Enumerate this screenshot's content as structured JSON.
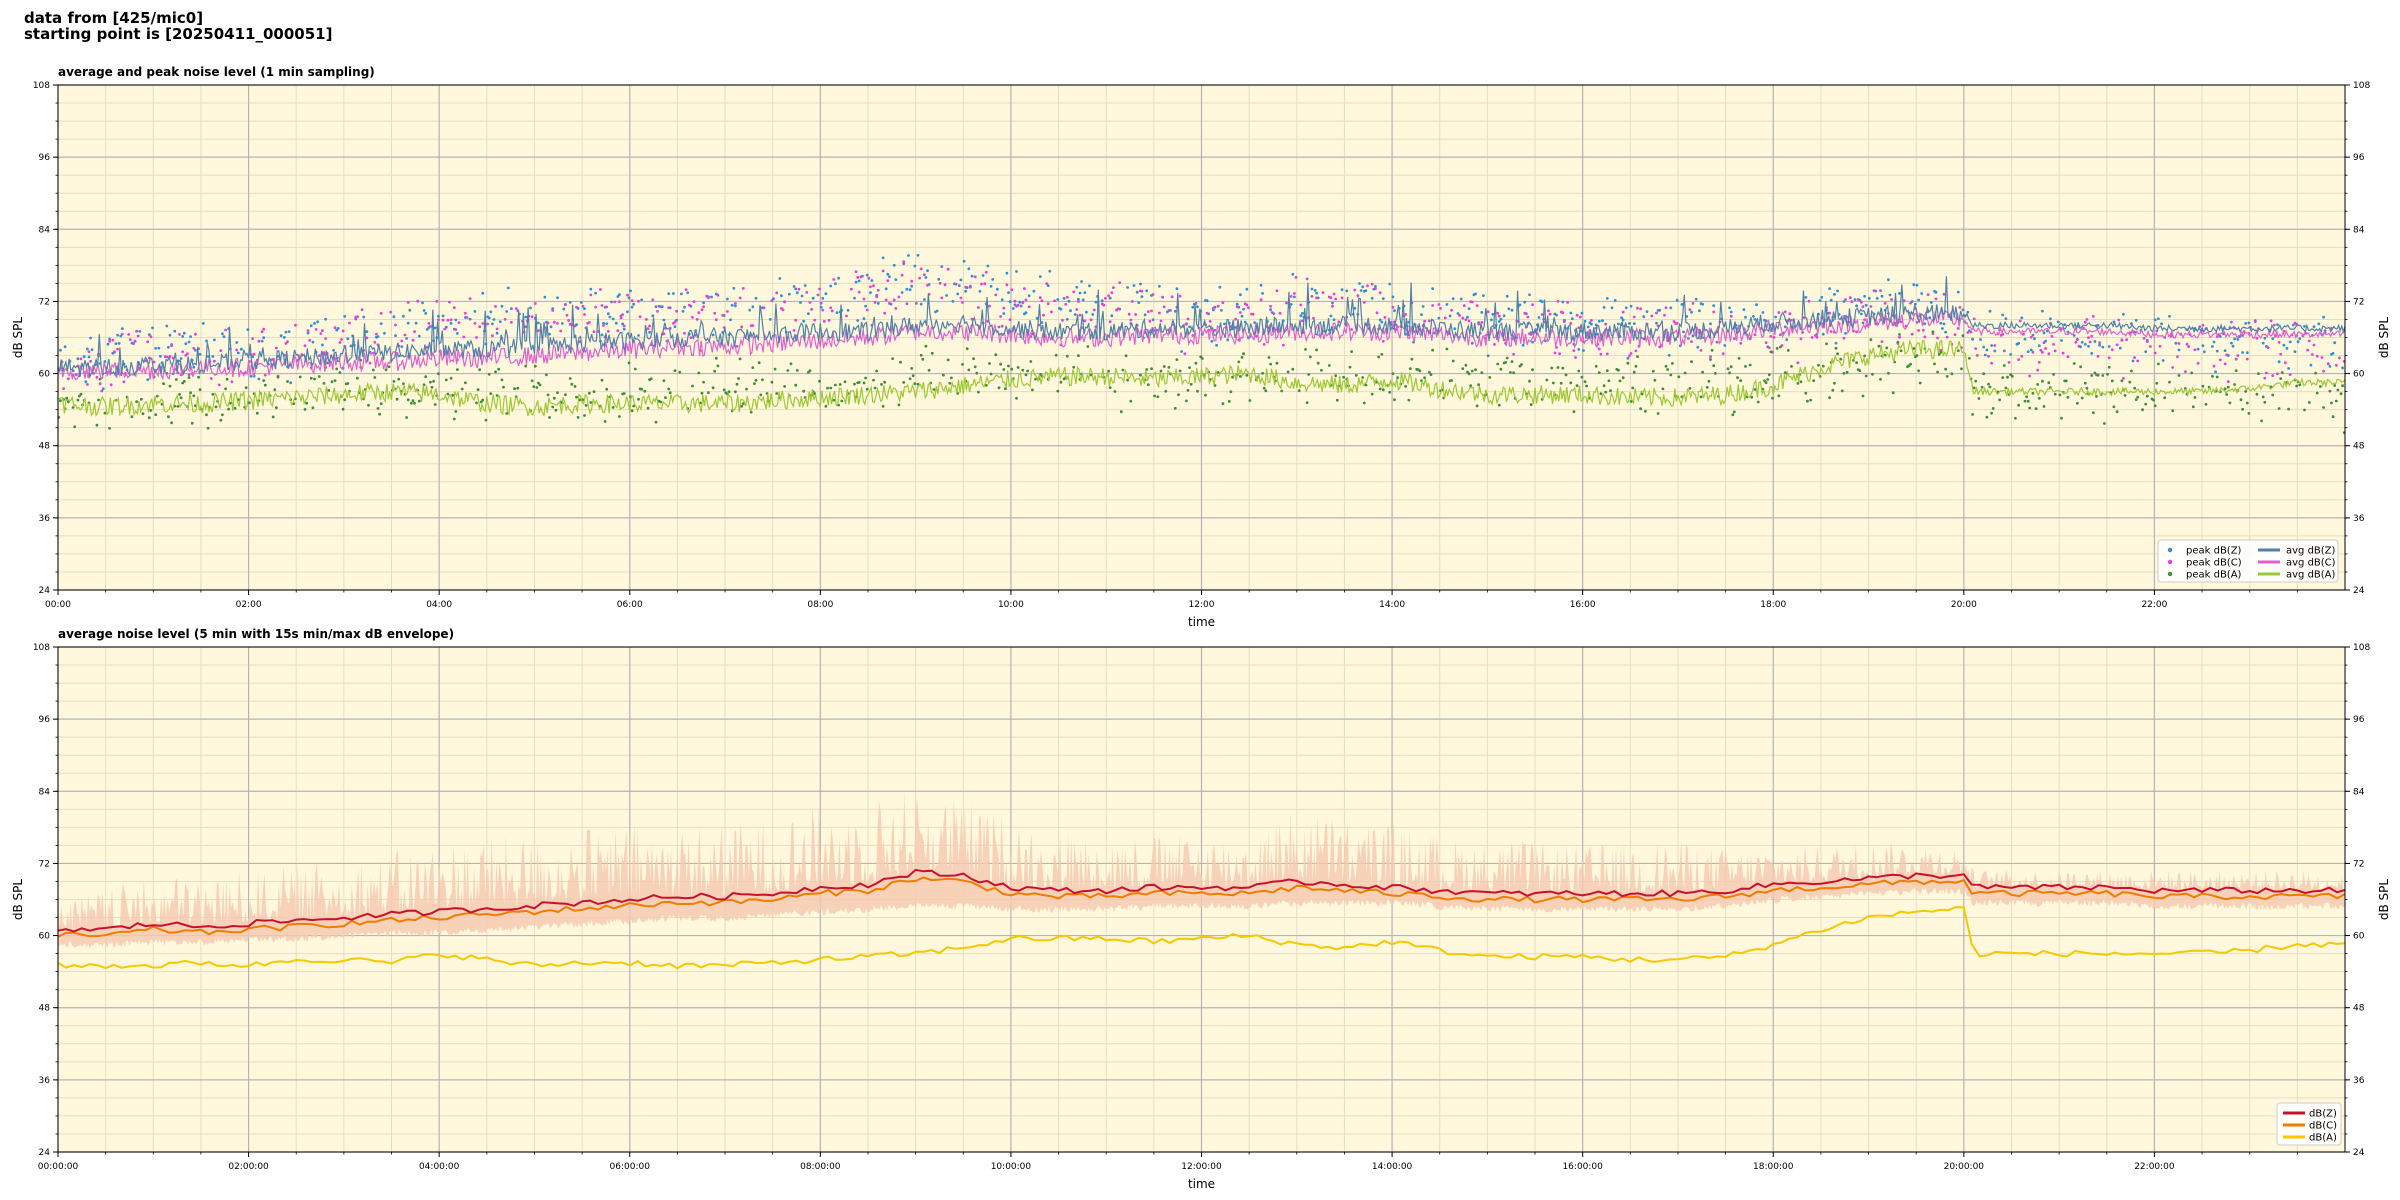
{
  "header": {
    "line1": "data from [425/mic0]",
    "line2": "starting point is [20250411_000051]"
  },
  "chart_data": [
    {
      "type": "line",
      "title": "average and peak noise level (1 min sampling)",
      "xlabel": "time",
      "ylabel": "dB SPL",
      "xlim_hours": [
        0,
        24
      ],
      "ylim": [
        24,
        108
      ],
      "yticks": [
        24,
        36,
        48,
        60,
        72,
        84,
        96,
        108
      ],
      "xtick_labels": [
        "00:00",
        "02:00",
        "04:00",
        "06:00",
        "08:00",
        "10:00",
        "12:00",
        "14:00",
        "16:00",
        "18:00",
        "20:00",
        "22:00"
      ],
      "grid": true,
      "legend_position": "bottom-right",
      "x_hours": [
        0,
        0.5,
        1,
        1.5,
        2,
        2.5,
        3,
        3.5,
        4,
        4.5,
        5,
        5.5,
        6,
        6.5,
        7,
        7.5,
        8,
        8.5,
        9,
        9.5,
        10,
        10.5,
        11,
        11.5,
        12,
        12.5,
        13,
        13.5,
        14,
        14.5,
        15,
        15.5,
        16,
        16.5,
        17,
        17.5,
        18,
        18.5,
        19,
        19.5,
        20,
        20.1,
        20.5,
        21,
        21.5,
        22,
        22.5,
        23,
        23.5,
        24
      ],
      "series": [
        {
          "name": "peak dB(Z)",
          "kind": "scatter",
          "color": "#2e90d8",
          "values": [
            64,
            66,
            68,
            67,
            67,
            68,
            70,
            71,
            72,
            72,
            73,
            73,
            74,
            74,
            74,
            75,
            76,
            77,
            79,
            78,
            76,
            75,
            75,
            74,
            73,
            73,
            76,
            75,
            74,
            73,
            72,
            72,
            71,
            72,
            72,
            71,
            72,
            72,
            74,
            74,
            73,
            69,
            69,
            69,
            69,
            69,
            69,
            69,
            69,
            69
          ]
        },
        {
          "name": "peak dB(C)",
          "kind": "scatter",
          "color": "#e83fd8",
          "values": [
            63,
            65,
            67,
            66,
            66,
            67,
            69,
            70,
            71,
            71,
            72,
            72,
            73,
            73,
            73,
            74,
            75,
            76,
            78,
            77,
            75,
            74,
            74,
            73,
            72,
            72,
            75,
            74,
            73,
            72,
            71,
            71,
            70,
            71,
            71,
            70,
            71,
            71,
            73,
            73,
            72,
            68,
            68,
            68,
            68,
            68,
            68,
            68,
            68,
            68
          ]
        },
        {
          "name": "peak dB(A)",
          "kind": "scatter",
          "color": "#3a8f3a",
          "values": [
            58,
            58,
            59,
            59,
            59,
            60,
            60,
            61,
            61,
            61,
            60,
            60,
            61,
            61,
            61,
            61,
            62,
            62,
            63,
            63,
            63,
            63,
            63,
            62,
            62,
            62,
            63,
            63,
            63,
            63,
            62,
            62,
            62,
            62,
            62,
            62,
            63,
            64,
            65,
            66,
            66,
            60,
            60,
            60,
            60,
            60,
            60,
            60,
            60,
            60
          ]
        },
        {
          "name": "avg dB(Z)",
          "kind": "line",
          "color": "#4f80a8",
          "values": [
            61,
            61,
            61.5,
            61.5,
            62,
            62.5,
            63,
            63.5,
            64,
            64,
            64.5,
            65,
            65.5,
            66,
            66,
            66.5,
            67,
            67,
            68,
            68.5,
            67.5,
            67,
            67,
            67.5,
            67.5,
            67.5,
            68,
            68,
            68,
            67.5,
            67,
            67,
            67,
            67,
            67,
            67.5,
            68.5,
            69,
            69.5,
            70,
            70,
            68,
            68,
            68,
            68,
            67.5,
            67.5,
            67.5,
            67.5,
            67.5
          ]
        },
        {
          "name": "avg dB(C)",
          "kind": "line",
          "color": "#e060d0",
          "values": [
            60.5,
            60.5,
            60.5,
            61,
            61,
            61.5,
            62,
            62,
            62.5,
            62.5,
            63,
            63.5,
            64,
            64.5,
            64.5,
            65,
            65.5,
            66,
            67,
            67,
            66.5,
            66,
            66,
            66.5,
            66.5,
            66.5,
            67,
            67,
            67,
            66.5,
            66,
            66,
            66,
            66,
            66,
            66.5,
            67.5,
            68,
            68.5,
            69,
            69,
            67,
            67,
            67,
            67,
            66.5,
            66.5,
            66.5,
            66.5,
            66.5
          ]
        },
        {
          "name": "avg dB(A)",
          "kind": "line",
          "color": "#9cc834",
          "values": [
            55,
            54.5,
            55,
            55,
            55.5,
            56,
            56.5,
            57,
            56.5,
            55,
            54.5,
            55,
            55,
            55,
            55,
            55.5,
            56,
            56.5,
            57,
            58,
            59,
            59.5,
            59.5,
            59,
            59.5,
            60,
            58.5,
            58,
            59,
            57.5,
            56.5,
            56.5,
            56.5,
            56,
            56,
            56.5,
            58,
            61,
            63,
            64,
            64,
            57,
            57,
            57,
            57,
            57,
            57,
            57.5,
            58.5,
            58.5
          ]
        }
      ]
    },
    {
      "type": "line",
      "title": "average noise level (5 min with 15s min/max dB envelope)",
      "xlabel": "time",
      "ylabel": "dB SPL",
      "xlim_hours": [
        0,
        24
      ],
      "ylim": [
        24,
        108
      ],
      "yticks": [
        24,
        36,
        48,
        60,
        72,
        84,
        96,
        108
      ],
      "xtick_labels": [
        "00:00:00",
        "02:00:00",
        "04:00:00",
        "06:00:00",
        "08:00:00",
        "10:00:00",
        "12:00:00",
        "14:00:00",
        "16:00:00",
        "18:00:00",
        "20:00:00",
        "22:00:00"
      ],
      "grid": true,
      "legend_position": "bottom-right",
      "envelope_color": "#f5c8b0",
      "envelope_max": [
        66,
        68,
        70,
        70,
        71,
        72,
        73,
        74,
        76,
        77,
        77,
        78,
        79,
        79,
        79,
        80,
        82,
        83,
        85,
        83,
        80,
        78,
        77,
        77,
        77,
        77,
        82,
        80,
        79,
        77,
        76,
        76,
        75,
        76,
        76,
        75,
        75,
        75,
        76,
        76,
        75,
        71,
        71,
        71,
        71,
        71,
        71,
        71,
        71,
        71
      ],
      "envelope_min": [
        59,
        59,
        59.5,
        59.5,
        60,
        60,
        60.5,
        61,
        61,
        61.5,
        62,
        62.5,
        63,
        63.5,
        63.5,
        64,
        64.5,
        65,
        65.5,
        65.5,
        65,
        65,
        65,
        65.5,
        65.5,
        65.5,
        66,
        66,
        66,
        65.5,
        65,
        65,
        65,
        65,
        65,
        65.5,
        66.5,
        67,
        67.5,
        68,
        68,
        66,
        66,
        66,
        66,
        65.5,
        65.5,
        65.5,
        65.5,
        65.5
      ],
      "x_hours": [
        0,
        0.5,
        1,
        1.5,
        2,
        2.5,
        3,
        3.5,
        4,
        4.5,
        5,
        5.5,
        6,
        6.5,
        7,
        7.5,
        8,
        8.5,
        9,
        9.5,
        10,
        10.5,
        11,
        11.5,
        12,
        12.5,
        13,
        13.5,
        14,
        14.5,
        15,
        15.5,
        16,
        16.5,
        17,
        17.5,
        18,
        18.5,
        19,
        19.5,
        20,
        20.1,
        20.5,
        21,
        21.5,
        22,
        22.5,
        23,
        23.5,
        24
      ],
      "series": [
        {
          "name": "dB(Z)",
          "color": "#c8102e",
          "values": [
            61,
            61,
            62,
            61.5,
            62,
            62.5,
            63,
            63.5,
            64,
            64.5,
            65,
            65.5,
            66,
            66.5,
            66.5,
            67,
            68,
            68.5,
            70.5,
            70,
            68,
            67.5,
            67.5,
            68,
            68,
            68,
            69,
            68.5,
            68,
            67.5,
            67,
            67,
            67,
            67,
            67,
            67.5,
            68.5,
            69,
            69.5,
            70,
            70,
            68,
            68,
            68,
            68,
            67.5,
            67.5,
            67.5,
            67.5,
            67.5
          ]
        },
        {
          "name": "dB(C)",
          "color": "#f07c00",
          "values": [
            60,
            60,
            61,
            60.5,
            61,
            61.5,
            62,
            62.5,
            63,
            63.5,
            64,
            64.5,
            65,
            65.5,
            65.5,
            66,
            67,
            67.5,
            69.5,
            69,
            67,
            66.5,
            66.5,
            67,
            67,
            67,
            68,
            67.5,
            67,
            66.5,
            66,
            66,
            66,
            66,
            66,
            66.5,
            67.5,
            68,
            68.5,
            69,
            69,
            67,
            67,
            67,
            67,
            66.5,
            66.5,
            66.5,
            66.5,
            66.5
          ]
        },
        {
          "name": "dB(A)",
          "color": "#f5c800",
          "values": [
            55,
            55,
            55,
            55.5,
            55,
            56,
            56,
            55.5,
            57,
            56,
            55,
            55.5,
            55.5,
            55,
            55,
            55.5,
            56,
            56.5,
            57,
            58,
            59.5,
            59.5,
            59.5,
            59,
            59.5,
            60,
            58.5,
            58,
            59,
            57.5,
            56.5,
            56.5,
            56.5,
            56,
            56,
            56.5,
            58.5,
            61,
            63,
            64,
            64.5,
            57,
            57,
            57,
            57,
            57,
            57,
            57.5,
            58.5,
            58.5
          ]
        }
      ]
    }
  ]
}
